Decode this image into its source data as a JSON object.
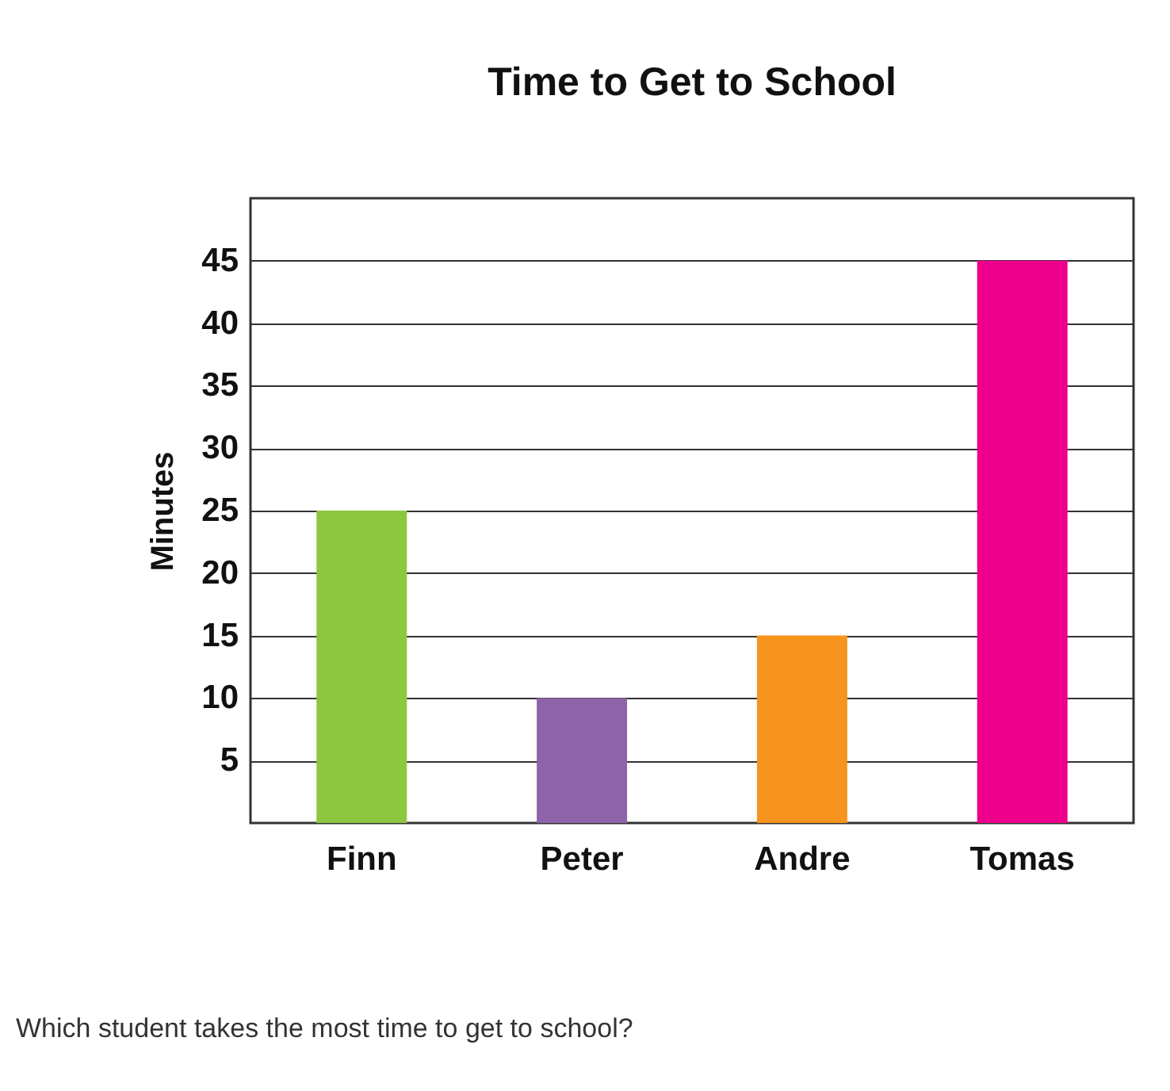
{
  "chart_data": {
    "type": "bar",
    "title": "Time to Get to School",
    "ylabel": "Minutes",
    "categories": [
      "Finn",
      "Peter",
      "Andre",
      "Tomas"
    ],
    "values": [
      25,
      10,
      15,
      45
    ],
    "colors": [
      "#8dc63f",
      "#8e63a9",
      "#f7941d",
      "#ec008c"
    ],
    "ylim": [
      0,
      50
    ],
    "yticks": [
      5,
      10,
      15,
      20,
      25,
      30,
      35,
      40,
      45
    ],
    "grid": "y",
    "annotations": [
      "Which student takes the most time to get to school?"
    ]
  }
}
